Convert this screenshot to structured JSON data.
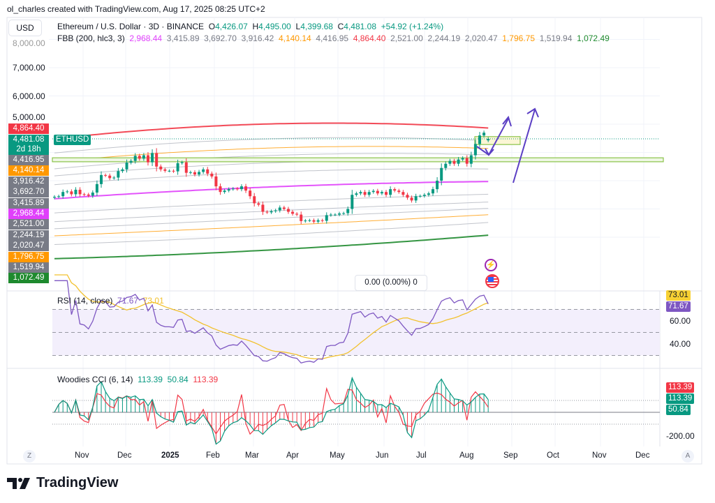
{
  "credit": "ol_charles created with TradingView.com, Aug 17, 2025 08:25 UTC+2",
  "currency": "USD",
  "symbol": {
    "name": "Ethereum / U.S. Dollar · 3D · BINANCE",
    "o_label": "O",
    "o": "4,426.07",
    "h_label": "H",
    "h": "4,495.00",
    "l_label": "L",
    "l": "4,399.68",
    "c_label": "C",
    "c": "4,481.08",
    "change": "+54.92 (+1.24%)"
  },
  "fbb": {
    "title": "FBB (200, hlc3, 3)",
    "values": [
      "2,968.44",
      "3,415.89",
      "3,692.70",
      "3,916.42",
      "4,140.14",
      "4,416.95",
      "4,864.40",
      "2,521.00",
      "2,244.19",
      "2,020.47",
      "1,796.75",
      "1,519.94",
      "1,072.49"
    ]
  },
  "price_axis": [
    "8,000.00",
    "7,000.00",
    "6,000.00",
    "5,000.00"
  ],
  "price_labels": {
    "upper": "4,864.40",
    "last": "4,481.08",
    "countdown": "2d 18h",
    "ticker": "ETHUSD",
    "bands": [
      "4,416.95",
      "4,140.14",
      "3,916.42",
      "3,692.70",
      "3,415.89",
      "2,968.44",
      "2,521.00",
      "2,244.19",
      "2,020.47",
      "1,796.75",
      "1,519.94",
      "1,072.49"
    ]
  },
  "measure": "0.00 (0.00%) 0",
  "rsi": {
    "title": "RSI (14, close)",
    "value": "71.67",
    "ma": "73.01",
    "axis": [
      "60.00",
      "40.00"
    ]
  },
  "cci": {
    "title": "Woodies CCI (6, 14)",
    "v1": "113.39",
    "v2": "50.84",
    "v3": "113.39",
    "axis": [
      "-200.00"
    ],
    "tags": [
      "113.39",
      "113.39",
      "50.84"
    ]
  },
  "x_axis": [
    "Nov",
    "Dec",
    "2025",
    "Feb",
    "Mar",
    "Apr",
    "May",
    "Jun",
    "Jul",
    "Aug",
    "Sep",
    "Oct",
    "Nov",
    "Dec"
  ],
  "buttons": {
    "zoom": "Z",
    "auto": "A"
  },
  "brand": "TradingView",
  "colors": {
    "up": "#089981",
    "down": "#f23645",
    "upper_band": "#f23645",
    "basis": "#e040fb",
    "orange_band": "#ff9800",
    "lower_band": "#1e8a2e",
    "rsi": "#7e57c2",
    "rsi_ma": "#f2c12e",
    "drawing": "#5b3fc4"
  },
  "chart_data": {
    "type": "candlestick",
    "title": "Ethereum / U.S. Dollar · 3D · BINANCE",
    "interval": "3D",
    "x_start": "2024-10-10",
    "x_end": "2025-08-15",
    "y_scale": "linear",
    "ylim": [
      1000,
      8000
    ],
    "grid": true,
    "closes": [
      2430,
      2450,
      2600,
      2620,
      2520,
      2680,
      2520,
      2510,
      2470,
      2580,
      2880,
      3200,
      3180,
      3090,
      3110,
      3340,
      3400,
      3640,
      3700,
      3880,
      3780,
      3900,
      3650,
      3980,
      3500,
      3400,
      3350,
      3350,
      3330,
      3620,
      3650,
      3280,
      3300,
      3220,
      3310,
      3400,
      3250,
      3150,
      2800,
      2600,
      2650,
      2700,
      2720,
      2700,
      2800,
      2650,
      2450,
      2200,
      2150,
      1900,
      1880,
      1920,
      1950,
      2050,
      2000,
      1900,
      1830,
      1800,
      1570,
      1590,
      1600,
      1550,
      1600,
      1580,
      1780,
      1800,
      1800,
      1840,
      1850,
      2000,
      2500,
      2550,
      2600,
      2500,
      2600,
      2640,
      2550,
      2600,
      2500,
      2700,
      2650,
      2600,
      2500,
      2400,
      2300,
      2450,
      2460,
      2500,
      2550,
      2700,
      3000,
      3450,
      3600,
      3700,
      3600,
      3750,
      3800,
      3600,
      3900,
      4300,
      4600,
      4700,
      4481.08
    ],
    "last_ohlc": {
      "open": 4426.07,
      "high": 4495.0,
      "low": 4399.68,
      "close": 4481.08
    },
    "fbb_last": {
      "basis": 2968.44,
      "upper": 4864.4,
      "lower": 1072.49
    },
    "zones": [
      {
        "from": 3670,
        "to": 3810
      },
      {
        "from": 4280,
        "to": 4560
      }
    ]
  }
}
